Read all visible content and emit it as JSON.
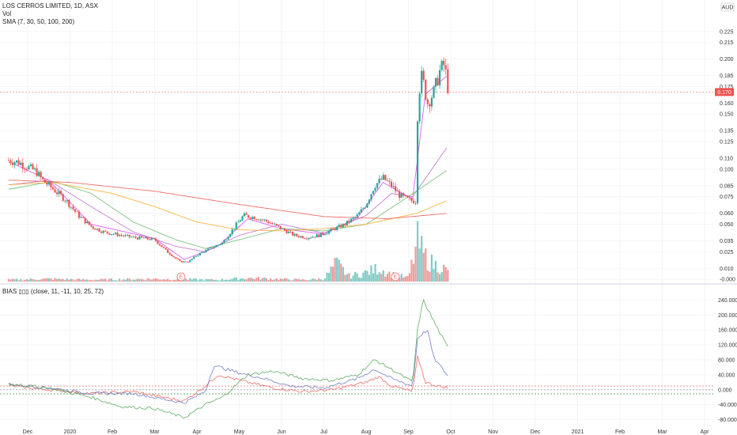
{
  "header": {
    "title": "LOS CERROS LIMITED, 1D, ASX",
    "vol_label": "Vol",
    "sma_label": "SMA (7, 30, 50, 100, 200)",
    "currency": "AUD"
  },
  "price_tag": {
    "value": 0.17,
    "text": "0.170"
  },
  "event_markers": [
    "E",
    "E"
  ],
  "colors": {
    "up": "#26a69a",
    "down": "#ef5350",
    "sma7": "#e040fb",
    "sma30": "#ba68c8",
    "sma50": "#66bb6a",
    "sma100": "#ffa726",
    "sma200": "#ef5350",
    "bias1": "#ef5350",
    "bias2": "#5c6bc0",
    "bias3": "#43a047",
    "vol_up": "#80cbc4",
    "vol_down": "#ef9a9a"
  },
  "chart_data": [
    {
      "type": "candlestick",
      "yticks": [
        "0.225",
        "0.215",
        "0.200",
        "0.185",
        "0.175",
        "0.160",
        "0.150",
        "0.135",
        "0.125",
        "0.110",
        "0.100",
        "0.085",
        "0.075",
        "0.060",
        "0.050",
        "0.035",
        "0.025",
        "0.010",
        "-0.000"
      ],
      "ylim": [
        -0.002,
        0.232
      ],
      "xticks": [
        {
          "label": "Dec",
          "x": 0
        },
        {
          "label": "2020",
          "x": 1
        },
        {
          "label": "Feb",
          "x": 2
        },
        {
          "label": "Mar",
          "x": 3
        },
        {
          "label": "Apr",
          "x": 4
        },
        {
          "label": "May",
          "x": 5
        },
        {
          "label": "Jun",
          "x": 6
        },
        {
          "label": "Jul",
          "x": 7
        },
        {
          "label": "Aug",
          "x": 8
        },
        {
          "label": "Sep",
          "x": 9
        },
        {
          "label": "Oct",
          "x": 10
        },
        {
          "label": "Nov",
          "x": 11
        },
        {
          "label": "Dec",
          "x": 12
        },
        {
          "label": "2021",
          "x": 13
        },
        {
          "label": "Feb",
          "x": 14
        },
        {
          "label": "Mar",
          "x": 15
        },
        {
          "label": "Apr",
          "x": 16
        }
      ],
      "close_anchors": [
        [
          -0.4,
          0.108
        ],
        [
          -0.2,
          0.106
        ],
        [
          0.0,
          0.102
        ],
        [
          0.2,
          0.098
        ],
        [
          0.35,
          0.09
        ],
        [
          0.6,
          0.082
        ],
        [
          0.9,
          0.072
        ],
        [
          1.2,
          0.058
        ],
        [
          1.5,
          0.048
        ],
        [
          1.8,
          0.043
        ],
        [
          2.2,
          0.04
        ],
        [
          2.5,
          0.038
        ],
        [
          2.8,
          0.037
        ],
        [
          3.0,
          0.036
        ],
        [
          3.3,
          0.025
        ],
        [
          3.6,
          0.016
        ],
        [
          3.8,
          0.016
        ],
        [
          4.0,
          0.022
        ],
        [
          4.3,
          0.028
        ],
        [
          4.6,
          0.033
        ],
        [
          4.9,
          0.048
        ],
        [
          5.1,
          0.058
        ],
        [
          5.4,
          0.056
        ],
        [
          5.7,
          0.052
        ],
        [
          6.0,
          0.046
        ],
        [
          6.3,
          0.04
        ],
        [
          6.6,
          0.038
        ],
        [
          6.9,
          0.04
        ],
        [
          7.2,
          0.045
        ],
        [
          7.5,
          0.05
        ],
        [
          7.8,
          0.058
        ],
        [
          8.0,
          0.068
        ],
        [
          8.2,
          0.085
        ],
        [
          8.4,
          0.092
        ],
        [
          8.6,
          0.085
        ],
        [
          8.8,
          0.076
        ],
        [
          9.0,
          0.072
        ],
        [
          9.2,
          0.071
        ],
        [
          9.22,
          0.165
        ],
        [
          9.32,
          0.185
        ],
        [
          9.45,
          0.16
        ],
        [
          9.6,
          0.17
        ],
        [
          9.75,
          0.19
        ],
        [
          9.85,
          0.195
        ],
        [
          9.95,
          0.17
        ]
      ],
      "volume_anchors": [
        [
          -0.4,
          2
        ],
        [
          0.5,
          3
        ],
        [
          1.5,
          2
        ],
        [
          3.0,
          3
        ],
        [
          4.5,
          2
        ],
        [
          5.2,
          4
        ],
        [
          6.5,
          2
        ],
        [
          7.0,
          3
        ],
        [
          7.3,
          20
        ],
        [
          7.6,
          6
        ],
        [
          8.0,
          10
        ],
        [
          8.3,
          15
        ],
        [
          8.6,
          8
        ],
        [
          9.0,
          4
        ],
        [
          9.22,
          45
        ],
        [
          9.35,
          30
        ],
        [
          9.5,
          22
        ],
        [
          9.65,
          18
        ],
        [
          9.8,
          16
        ],
        [
          9.95,
          10
        ]
      ],
      "sma_anchors": {
        "sma7": [
          [
            -0.4,
            0.106
          ],
          [
            0.5,
            0.09
          ],
          [
            1.5,
            0.05
          ],
          [
            3.0,
            0.037
          ],
          [
            3.7,
            0.018
          ],
          [
            4.5,
            0.03
          ],
          [
            5.2,
            0.055
          ],
          [
            6.0,
            0.046
          ],
          [
            7.0,
            0.041
          ],
          [
            7.8,
            0.056
          ],
          [
            8.4,
            0.088
          ],
          [
            9.1,
            0.073
          ],
          [
            9.4,
            0.168
          ],
          [
            9.95,
            0.186
          ]
        ],
        "sma30": [
          [
            -0.4,
            0.086
          ],
          [
            0.5,
            0.09
          ],
          [
            1.5,
            0.066
          ],
          [
            2.5,
            0.043
          ],
          [
            3.5,
            0.03
          ],
          [
            4.2,
            0.025
          ],
          [
            5.0,
            0.04
          ],
          [
            6.0,
            0.05
          ],
          [
            7.0,
            0.042
          ],
          [
            8.0,
            0.058
          ],
          [
            8.6,
            0.078
          ],
          [
            9.1,
            0.075
          ],
          [
            9.95,
            0.122
          ]
        ],
        "sma50": [
          [
            -0.4,
            0.082
          ],
          [
            0.6,
            0.089
          ],
          [
            1.5,
            0.078
          ],
          [
            2.5,
            0.052
          ],
          [
            3.5,
            0.036
          ],
          [
            4.2,
            0.028
          ],
          [
            5.0,
            0.036
          ],
          [
            6.0,
            0.046
          ],
          [
            7.0,
            0.044
          ],
          [
            8.0,
            0.05
          ],
          [
            8.8,
            0.07
          ],
          [
            9.95,
            0.1
          ]
        ],
        "sma100": [
          [
            -0.4,
            0.086
          ],
          [
            0.6,
            0.088
          ],
          [
            2.0,
            0.078
          ],
          [
            3.0,
            0.066
          ],
          [
            4.0,
            0.052
          ],
          [
            5.0,
            0.045
          ],
          [
            6.0,
            0.044
          ],
          [
            7.0,
            0.046
          ],
          [
            8.0,
            0.05
          ],
          [
            9.2,
            0.06
          ],
          [
            9.95,
            0.072
          ]
        ],
        "sma200": [
          [
            -0.4,
            0.09
          ],
          [
            1.0,
            0.088
          ],
          [
            3.0,
            0.08
          ],
          [
            5.0,
            0.068
          ],
          [
            7.0,
            0.057
          ],
          [
            8.5,
            0.055
          ],
          [
            9.95,
            0.06
          ]
        ]
      }
    },
    {
      "type": "line",
      "title": "BIAS ▯▯▯ (close, 11, -11, 10, 25, 72)",
      "yticks": [
        "240.000",
        "200.000",
        "160.000",
        "120.000",
        "80.000",
        "40.000",
        "0.000",
        "-40.000",
        "-80.000"
      ],
      "ylim": [
        -100,
        260
      ],
      "hlines": [
        10,
        -11,
        0
      ],
      "series": [
        {
          "name": "BIAS 10",
          "anchors": [
            [
              -0.4,
              10
            ],
            [
              0.5,
              0
            ],
            [
              1.5,
              -10
            ],
            [
              2.5,
              -5
            ],
            [
              3.2,
              -20
            ],
            [
              3.7,
              -30
            ],
            [
              4.2,
              10
            ],
            [
              4.5,
              40
            ],
            [
              5.2,
              20
            ],
            [
              5.8,
              5
            ],
            [
              6.5,
              -5
            ],
            [
              7.2,
              0
            ],
            [
              8.0,
              20
            ],
            [
              8.3,
              35
            ],
            [
              8.6,
              10
            ],
            [
              9.1,
              -5
            ],
            [
              9.22,
              90
            ],
            [
              9.4,
              20
            ],
            [
              9.7,
              10
            ],
            [
              9.95,
              5
            ]
          ]
        },
        {
          "name": "BIAS 25",
          "anchors": [
            [
              -0.4,
              15
            ],
            [
              0.5,
              5
            ],
            [
              1.5,
              -10
            ],
            [
              2.5,
              -10
            ],
            [
              3.2,
              -25
            ],
            [
              3.7,
              -35
            ],
            [
              4.2,
              -5
            ],
            [
              4.4,
              65
            ],
            [
              5.0,
              45
            ],
            [
              5.6,
              30
            ],
            [
              6.2,
              10
            ],
            [
              7.0,
              5
            ],
            [
              7.8,
              30
            ],
            [
              8.2,
              55
            ],
            [
              8.6,
              30
            ],
            [
              9.1,
              10
            ],
            [
              9.22,
              140
            ],
            [
              9.45,
              160
            ],
            [
              9.6,
              85
            ],
            [
              9.95,
              35
            ]
          ]
        },
        {
          "name": "BIAS 72",
          "anchors": [
            [
              -0.4,
              15
            ],
            [
              0.5,
              5
            ],
            [
              1.5,
              -20
            ],
            [
              2.2,
              -45
            ],
            [
              3.0,
              -50
            ],
            [
              3.7,
              -75
            ],
            [
              4.2,
              -40
            ],
            [
              4.6,
              -20
            ],
            [
              5.2,
              40
            ],
            [
              5.8,
              50
            ],
            [
              6.5,
              30
            ],
            [
              7.2,
              25
            ],
            [
              7.8,
              40
            ],
            [
              8.2,
              80
            ],
            [
              8.6,
              55
            ],
            [
              9.1,
              20
            ],
            [
              9.22,
              165
            ],
            [
              9.35,
              240
            ],
            [
              9.55,
              195
            ],
            [
              9.75,
              150
            ],
            [
              9.95,
              110
            ]
          ]
        }
      ]
    }
  ]
}
